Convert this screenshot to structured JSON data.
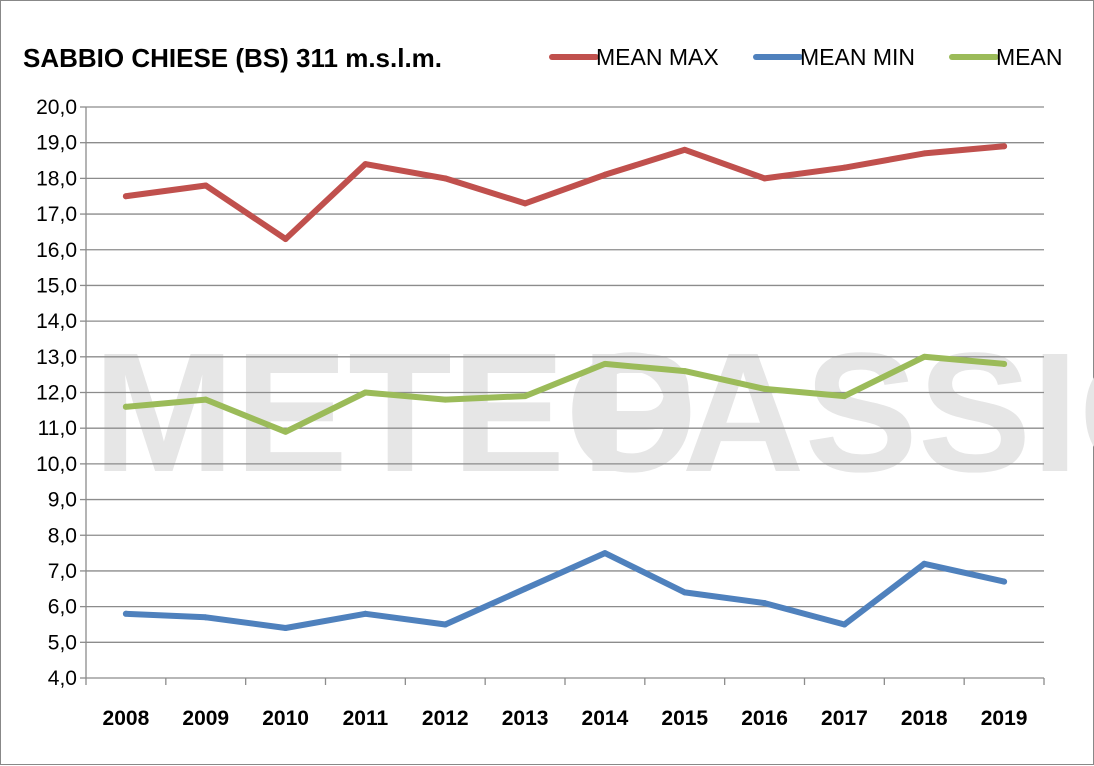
{
  "chart_data": {
    "type": "line",
    "title": "SABBIO CHIESE (BS) 311 m.s.l.m.",
    "watermark": [
      "METEO",
      "PASSIONE"
    ],
    "categories": [
      "2008",
      "2009",
      "2010",
      "2011",
      "2012",
      "2013",
      "2014",
      "2015",
      "2016",
      "2017",
      "2018",
      "2019"
    ],
    "ylim": [
      4.0,
      20.0
    ],
    "ytick_step": 1.0,
    "ytick_labels": [
      "4,0",
      "5,0",
      "6,0",
      "7,0",
      "8,0",
      "9,0",
      "10,0",
      "11,0",
      "12,0",
      "13,0",
      "14,0",
      "15,0",
      "16,0",
      "17,0",
      "18,0",
      "19,0",
      "20,0"
    ],
    "grid": true,
    "legend_position": "top-right",
    "series": [
      {
        "name": "MEAN MAX",
        "color": "#c0504d",
        "values": [
          17.5,
          17.8,
          16.3,
          18.4,
          18.0,
          17.3,
          18.1,
          18.8,
          18.0,
          18.3,
          18.7,
          18.9
        ]
      },
      {
        "name": "MEAN MIN",
        "color": "#4f81bd",
        "values": [
          5.8,
          5.7,
          5.4,
          5.8,
          5.5,
          6.5,
          7.5,
          6.4,
          6.1,
          5.5,
          7.2,
          6.7
        ]
      },
      {
        "name": "MEAN",
        "color": "#9bbb59",
        "values": [
          11.6,
          11.8,
          10.9,
          12.0,
          11.8,
          11.9,
          12.8,
          12.6,
          12.1,
          11.9,
          13.0,
          12.8
        ]
      }
    ]
  }
}
